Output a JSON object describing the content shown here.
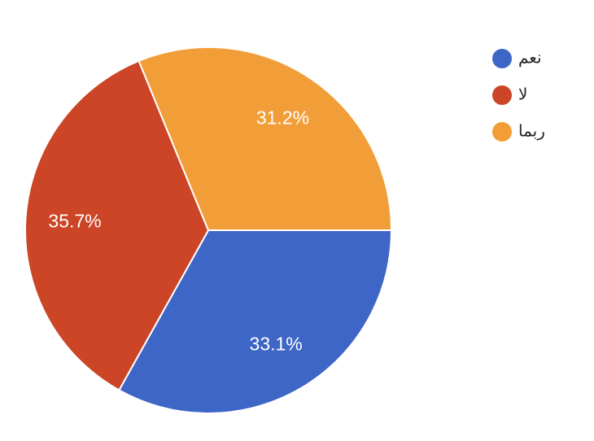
{
  "chart_data": {
    "type": "pie",
    "categories": [
      "نعم",
      "لا",
      "ربما"
    ],
    "values": [
      33.1,
      35.7,
      31.2
    ],
    "value_labels": [
      "33.1%",
      "35.7%",
      "31.2%"
    ],
    "colors": [
      "#3e66c6",
      "#cb4526",
      "#f29e38"
    ]
  }
}
